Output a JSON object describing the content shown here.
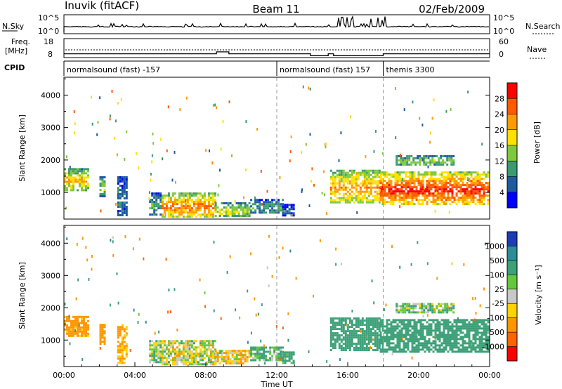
{
  "header": {
    "station": "Inuvik (fitACF)",
    "beam": "Beam 11",
    "date": "02/Feb/2009"
  },
  "nsky_panel": {
    "left_label": "N.Sky",
    "right_label": "N.Search",
    "left_ticks": [
      "10^5",
      "10^0"
    ],
    "right_ticks": [
      "10^5",
      "10^0"
    ]
  },
  "freq_panel": {
    "left_label_1": "Freq.",
    "left_label_2": "[MHz]",
    "right_label": "Nave",
    "left_ticks": [
      "18",
      "8"
    ],
    "right_ticks": [
      "60",
      "0"
    ]
  },
  "cpid": {
    "label": "CPID",
    "segments": [
      {
        "start_hour": 0,
        "text": "normalsound (fast) -157"
      },
      {
        "start_hour": 12,
        "text": "normalsound (fast) 157"
      },
      {
        "start_hour": 18,
        "text": "themis 3300"
      }
    ]
  },
  "power_panel": {
    "ylabel": "Slant Range [km]",
    "colorbar_label": "Power [dB]",
    "colorbar_ticks": [
      "28",
      "24",
      "20",
      "16",
      "12",
      "8",
      "4"
    ],
    "colorbar_colors": [
      "#ff0000",
      "#ff5a00",
      "#ff9b00",
      "#ffe100",
      "#7fc83c",
      "#3c9b6e",
      "#1e5aa0",
      "#0000ff"
    ]
  },
  "velocity_panel": {
    "ylabel": "Slant Range [km]",
    "colorbar_label": "Velocity [m s⁻¹]",
    "colorbar_ticks": [
      "1000",
      "500",
      "100",
      "25",
      "-25",
      "-100",
      "-500",
      "-1000"
    ],
    "colorbar_colors": [
      "#1e3cb4",
      "#2d8c96",
      "#3ca078",
      "#64c83c",
      "#c8c8c8",
      "#ffd200",
      "#ff9600",
      "#ff6400",
      "#ff0000"
    ]
  },
  "xaxis": {
    "label": "Time UT",
    "ticks": [
      "00:00",
      "04:00",
      "08:00",
      "12:00",
      "16:00",
      "20:00",
      "00:00"
    ]
  },
  "chart_data": {
    "type": "heatmap",
    "title": "Inuvik (fitACF)  Beam 11  02/Feb/2009",
    "xlabel": "Time UT",
    "ylabel": "Slant Range [km]",
    "xlim_hours": [
      0,
      24
    ],
    "ylim_km": [
      180,
      4550
    ],
    "y_ticks_km": [
      1000,
      2000,
      3000,
      4000
    ],
    "grid": false,
    "dashed_markers_hours": [
      12,
      18
    ],
    "frequency_steps": [
      {
        "start_hour": 0,
        "freq_mhz": 10
      },
      {
        "start_hour": 8.6,
        "freq_mhz": 11
      },
      {
        "start_hour": 9.3,
        "freq_mhz": 10
      },
      {
        "start_hour": 13.9,
        "freq_mhz": 9
      },
      {
        "start_hour": 14.9,
        "freq_mhz": 10
      },
      {
        "start_hour": 15.2,
        "freq_mhz": 9
      },
      {
        "start_hour": 18.0,
        "freq_mhz": 10
      }
    ],
    "power_regions": [
      {
        "t0": 0.0,
        "t1": 1.4,
        "r0": 1100,
        "r1": 1750,
        "db": 20
      },
      {
        "t0": 2.0,
        "t1": 2.3,
        "r0": 900,
        "r1": 1500,
        "db": 14
      },
      {
        "t0": 3.0,
        "t1": 3.5,
        "r0": 300,
        "r1": 1500,
        "db": 8
      },
      {
        "t0": 4.8,
        "t1": 5.5,
        "r0": 300,
        "r1": 1000,
        "db": 10
      },
      {
        "t0": 5.5,
        "t1": 8.5,
        "r0": 250,
        "r1": 1000,
        "db": 24
      },
      {
        "t0": 8.5,
        "t1": 10.5,
        "r0": 250,
        "r1": 700,
        "db": 16
      },
      {
        "t0": 10.5,
        "t1": 12.3,
        "r0": 350,
        "r1": 800,
        "db": 10
      },
      {
        "t0": 12.3,
        "t1": 13.0,
        "r0": 300,
        "r1": 650,
        "db": 6
      },
      {
        "t0": 15.0,
        "t1": 17.8,
        "r0": 700,
        "r1": 1700,
        "db": 22
      },
      {
        "t0": 17.8,
        "t1": 23.9,
        "r0": 650,
        "r1": 1650,
        "db": 28
      },
      {
        "t0": 18.7,
        "t1": 22.0,
        "r0": 1850,
        "r1": 2150,
        "db": 14
      }
    ],
    "velocity_regions": [
      {
        "t0": 0.0,
        "t1": 1.4,
        "r0": 1100,
        "r1": 1750,
        "v": -200
      },
      {
        "t0": 2.0,
        "t1": 2.3,
        "r0": 900,
        "r1": 1500,
        "v": -300
      },
      {
        "t0": 3.0,
        "t1": 3.5,
        "r0": 300,
        "r1": 1500,
        "v": -150
      },
      {
        "t0": 4.8,
        "t1": 5.5,
        "r0": 300,
        "r1": 1000,
        "v": 60
      },
      {
        "t0": 5.5,
        "t1": 8.5,
        "r0": 250,
        "r1": 1000,
        "v": 0
      },
      {
        "t0": 8.5,
        "t1": 10.5,
        "r0": 250,
        "r1": 700,
        "v": -60
      },
      {
        "t0": 10.5,
        "t1": 12.3,
        "r0": 350,
        "r1": 800,
        "v": 120
      },
      {
        "t0": 12.3,
        "t1": 13.0,
        "r0": 300,
        "r1": 650,
        "v": 200
      },
      {
        "t0": 15.0,
        "t1": 17.8,
        "r0": 700,
        "r1": 1700,
        "v": 300
      },
      {
        "t0": 17.8,
        "t1": 23.9,
        "r0": 650,
        "r1": 1650,
        "v": 300
      },
      {
        "t0": 18.7,
        "t1": 22.0,
        "r0": 1850,
        "r1": 2150,
        "v": 60
      }
    ]
  }
}
